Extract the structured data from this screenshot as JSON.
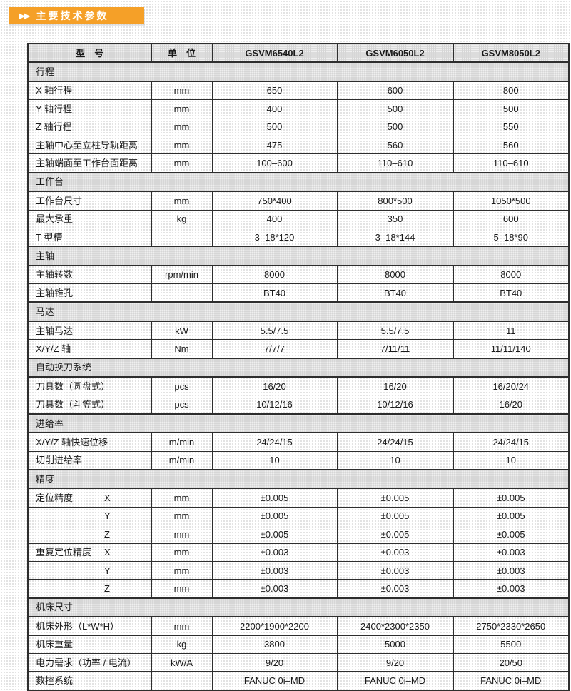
{
  "colors": {
    "banner_bg": "#F5A028",
    "banner_text": "#FFFFFF",
    "table_border": "#2E2E2E",
    "section_bg": "#D6D6D6",
    "text": "#1A1A1A"
  },
  "banner": {
    "arrows": "▶▶",
    "title": "主要技术参数"
  },
  "table": {
    "header": [
      "型　号",
      "单　位",
      "GSVM6540L2",
      "GSVM6050L2",
      "GSVM8050L2"
    ],
    "sections": [
      {
        "title": "行程",
        "rows": [
          {
            "label": "X 轴行程",
            "unit": "mm",
            "values": [
              "650",
              "600",
              "800"
            ]
          },
          {
            "label": "Y 轴行程",
            "unit": "mm",
            "values": [
              "400",
              "500",
              "500"
            ]
          },
          {
            "label": "Z 轴行程",
            "unit": "mm",
            "values": [
              "500",
              "500",
              "550"
            ]
          },
          {
            "label": "主轴中心至立柱导轨距离",
            "unit": "mm",
            "values": [
              "475",
              "560",
              "560"
            ]
          },
          {
            "label": "主轴端面至工作台面距离",
            "unit": "mm",
            "values": [
              "100–600",
              "110–610",
              "110–610"
            ]
          }
        ]
      },
      {
        "title": "工作台",
        "rows": [
          {
            "label": "工作台尺寸",
            "unit": "mm",
            "values": [
              "750*400",
              "800*500",
              "1050*500"
            ]
          },
          {
            "label": "最大承重",
            "unit": "kg",
            "values": [
              "400",
              "350",
              "600"
            ]
          },
          {
            "label": "T 型槽",
            "unit": "",
            "values": [
              "3–18*120",
              "3–18*144",
              "5–18*90"
            ]
          }
        ]
      },
      {
        "title": "主轴",
        "rows": [
          {
            "label": "主轴转数",
            "unit": "rpm/min",
            "values": [
              "8000",
              "8000",
              "8000"
            ]
          },
          {
            "label": "主轴锥孔",
            "unit": "",
            "values": [
              "BT40",
              "BT40",
              "BT40"
            ]
          }
        ]
      },
      {
        "title": "马达",
        "rows": [
          {
            "label": "主轴马达",
            "unit": "kW",
            "values": [
              "5.5/7.5",
              "5.5/7.5",
              "11"
            ]
          },
          {
            "label": "X/Y/Z 轴",
            "unit": "Nm",
            "values": [
              "7/7/7",
              "7/11/11",
              "11/11/140"
            ]
          }
        ]
      },
      {
        "title": "自动换刀系统",
        "rows": [
          {
            "label": "刀具数（圆盘式）",
            "unit": "pcs",
            "values": [
              "16/20",
              "16/20",
              "16/20/24"
            ]
          },
          {
            "label": "刀具数（斗笠式）",
            "unit": "pcs",
            "values": [
              "10/12/16",
              "10/12/16",
              "16/20"
            ]
          }
        ]
      },
      {
        "title": "进给率",
        "rows": [
          {
            "label": "X/Y/Z 轴快速位移",
            "unit": "m/min",
            "values": [
              "24/24/15",
              "24/24/15",
              "24/24/15"
            ]
          },
          {
            "label": "切削进给率",
            "unit": "m/min",
            "values": [
              "10",
              "10",
              "10"
            ]
          }
        ]
      },
      {
        "title": "精度",
        "rows": [
          {
            "label": "定位精度",
            "axis": "X",
            "unit": "mm",
            "values": [
              "±0.005",
              "±0.005",
              "±0.005"
            ]
          },
          {
            "label": "",
            "axis": "Y",
            "unit": "mm",
            "values": [
              "±0.005",
              "±0.005",
              "±0.005"
            ]
          },
          {
            "label": "",
            "axis": "Z",
            "unit": "mm",
            "values": [
              "±0.005",
              "±0.005",
              "±0.005"
            ]
          },
          {
            "label": "重复定位精度",
            "axis": "X",
            "unit": "mm",
            "values": [
              "±0.003",
              "±0.003",
              "±0.003"
            ]
          },
          {
            "label": "",
            "axis": "Y",
            "unit": "mm",
            "values": [
              "±0.003",
              "±0.003",
              "±0.003"
            ]
          },
          {
            "label": "",
            "axis": "Z",
            "unit": "mm",
            "values": [
              "±0.003",
              "±0.003",
              "±0.003"
            ]
          }
        ]
      },
      {
        "title": "机床尺寸",
        "rows": [
          {
            "label": "机床外形（L*W*H）",
            "unit": "mm",
            "values": [
              "2200*1900*2200",
              "2400*2300*2350",
              "2750*2330*2650"
            ]
          },
          {
            "label": "机床重量",
            "unit": "kg",
            "values": [
              "3800",
              "5000",
              "5500"
            ]
          },
          {
            "label": "电力需求（功率 / 电流）",
            "unit": "kW/A",
            "values": [
              "9/20",
              "9/20",
              "20/50"
            ]
          },
          {
            "label": "数控系统",
            "unit": "",
            "values": [
              "FANUC 0i–MD",
              "FANUC 0i–MD",
              "FANUC 0i–MD"
            ]
          }
        ]
      }
    ]
  }
}
